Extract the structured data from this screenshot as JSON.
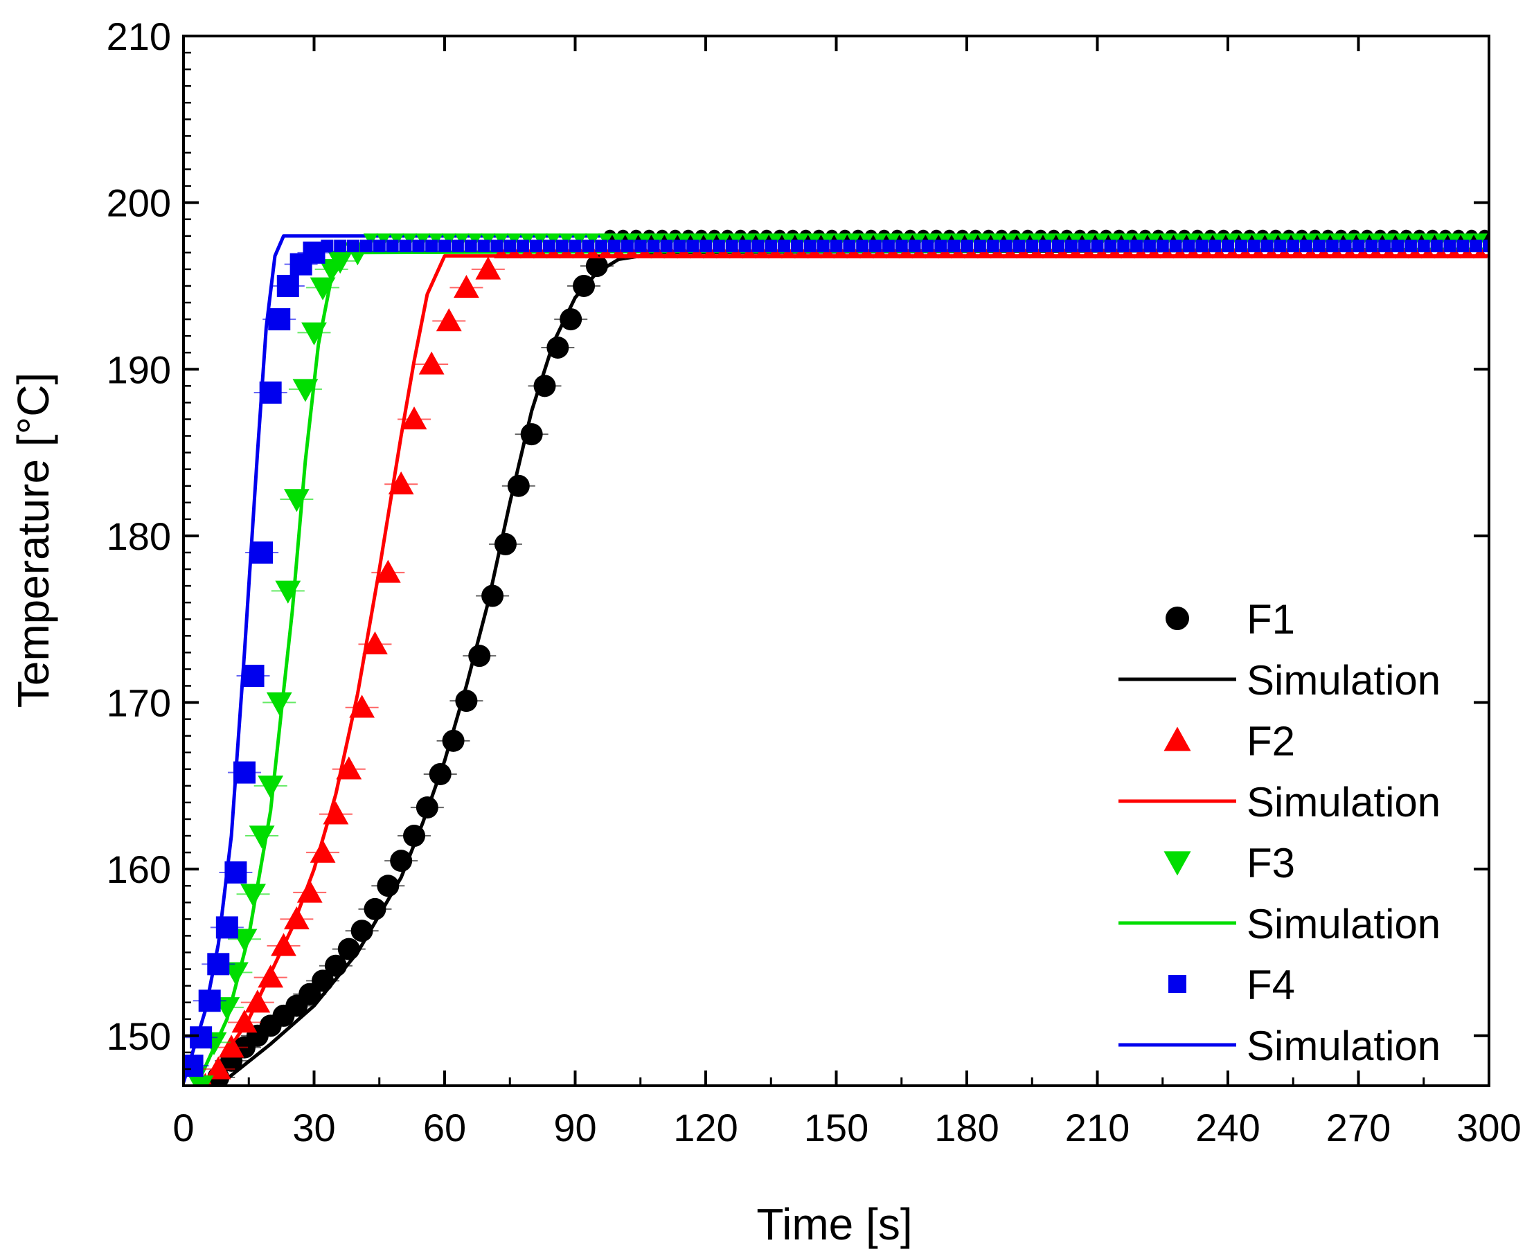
{
  "chart_data": {
    "type": "scatter",
    "title": "",
    "xlabel": "Time [s]",
    "ylabel": "Temperature [°C]",
    "xlim": [
      0,
      300
    ],
    "ylim": [
      147,
      210
    ],
    "xticks": [
      0,
      30,
      60,
      90,
      120,
      150,
      180,
      210,
      240,
      270,
      300
    ],
    "xtick_labels": [
      "0",
      "30",
      "60",
      "90",
      "120",
      "150",
      "180",
      "210",
      "240",
      "270",
      "300"
    ],
    "yticks": [
      150,
      160,
      170,
      180,
      190,
      200,
      210
    ],
    "ytick_labels": [
      "150",
      "160",
      "170",
      "180",
      "190",
      "200",
      "210"
    ],
    "grid": false,
    "legend_position": "bottom-right",
    "series": [
      {
        "name": "F1",
        "kind": "measured",
        "marker": "circle",
        "color": "#000000",
        "x": [
          8,
          11,
          14,
          17,
          20,
          23,
          26,
          29,
          32,
          35,
          38,
          41,
          44,
          47,
          50,
          53,
          56,
          59,
          62,
          65,
          68,
          71,
          74,
          77,
          80,
          83,
          86,
          89,
          92,
          95
        ],
        "y": [
          147.5,
          148.5,
          149.3,
          150.0,
          150.6,
          151.2,
          151.8,
          152.5,
          153.3,
          154.2,
          155.2,
          156.3,
          157.6,
          159.0,
          160.5,
          162.0,
          163.7,
          165.7,
          167.7,
          170.1,
          172.8,
          176.4,
          179.5,
          183.0,
          186.1,
          189.0,
          191.3,
          193.0,
          195.0,
          196.2
        ]
      },
      {
        "name": "Simulation",
        "kind": "simulation",
        "ref": "F1",
        "color": "#000000",
        "x": [
          8,
          20,
          30,
          40,
          50,
          55,
          60,
          65,
          70,
          75,
          80,
          85,
          90,
          95,
          100,
          110,
          300
        ],
        "y": [
          147.0,
          149.5,
          151.8,
          155.0,
          159.5,
          162.8,
          166.5,
          171.0,
          176.0,
          182.0,
          187.5,
          191.6,
          194.3,
          195.8,
          196.6,
          197.0,
          197.2
        ]
      },
      {
        "name": "F2",
        "kind": "measured",
        "marker": "triangle-up",
        "color": "#ff0000",
        "x": [
          5,
          8,
          11,
          14,
          17,
          20,
          23,
          26,
          29,
          32,
          35,
          38,
          41,
          44,
          47,
          50,
          53,
          57,
          61,
          65,
          70
        ],
        "y": [
          147.0,
          148.0,
          149.3,
          150.8,
          152.0,
          153.5,
          155.4,
          157.0,
          158.6,
          161.0,
          163.3,
          166.0,
          169.7,
          173.5,
          177.8,
          183.1,
          187.0,
          190.3,
          192.9,
          194.9,
          196.0
        ]
      },
      {
        "name": "Simulation",
        "kind": "simulation",
        "ref": "F2",
        "color": "#ff0000",
        "x": [
          5,
          15,
          25,
          30,
          35,
          40,
          45,
          50,
          53,
          56,
          60,
          300
        ],
        "y": [
          147.0,
          151.0,
          156.5,
          160.0,
          164.5,
          170.5,
          178.0,
          186.0,
          190.5,
          194.5,
          196.8,
          196.8
        ]
      },
      {
        "name": "F3",
        "kind": "measured",
        "marker": "triangle-down",
        "color": "#00dd00",
        "x": [
          4,
          7,
          10,
          12,
          14,
          16,
          18,
          20,
          22,
          24,
          26,
          28,
          30,
          32,
          34,
          36,
          40
        ],
        "y": [
          147.0,
          149.6,
          151.7,
          153.8,
          155.8,
          158.5,
          162.0,
          165.0,
          170.0,
          176.7,
          182.2,
          188.8,
          192.2,
          194.9,
          196.0,
          196.5,
          197.0
        ]
      },
      {
        "name": "Simulation",
        "kind": "simulation",
        "ref": "F3",
        "color": "#00dd00",
        "x": [
          3,
          10,
          15,
          20,
          25,
          28,
          31,
          34,
          38,
          300
        ],
        "y": [
          147.0,
          151.0,
          156.0,
          163.5,
          175.5,
          184.5,
          191.5,
          195.5,
          197.0,
          197.2
        ]
      },
      {
        "name": "F4",
        "kind": "measured",
        "marker": "square",
        "color": "#0000ee",
        "x": [
          2,
          4,
          6,
          8,
          10,
          12,
          14,
          16,
          18,
          20,
          22,
          24,
          27,
          30
        ],
        "y": [
          148.2,
          149.9,
          152.1,
          154.3,
          156.5,
          159.8,
          165.8,
          171.6,
          179.0,
          188.6,
          193.0,
          195.0,
          196.3,
          197.0
        ]
      },
      {
        "name": "Simulation",
        "kind": "simulation",
        "ref": "F4",
        "color": "#0000ee",
        "x": [
          0,
          5,
          8,
          11,
          14,
          17,
          19,
          21,
          23,
          300
        ],
        "y": [
          147.2,
          151.5,
          155.5,
          162.0,
          173.0,
          185.0,
          192.5,
          196.8,
          198.0,
          198.0
        ]
      }
    ]
  }
}
